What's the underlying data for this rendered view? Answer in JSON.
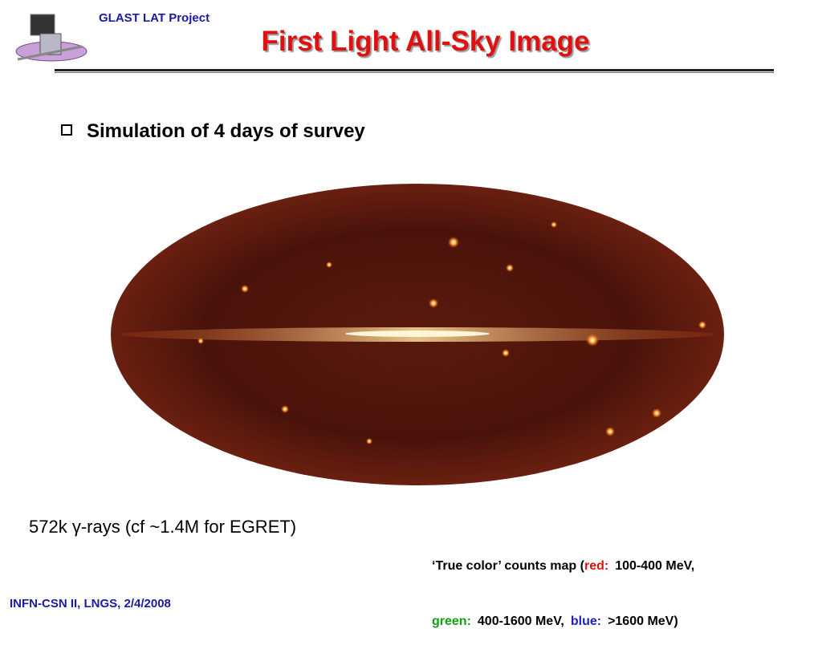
{
  "header": {
    "project": "GLAST LAT Project",
    "title": "First Light All-Sky Image"
  },
  "bullet": "Simulation of 4 days of survey",
  "caption": "572k γ-rays (cf ~1.4M for EGRET)",
  "legend": {
    "line1": [
      "‘True color’ counts map (",
      "red:",
      "100-400 MeV,"
    ],
    "line2": [
      "green:",
      "400-1600 MeV,",
      "blue:",
      ">1600 MeV)"
    ]
  },
  "footer": "INFN-CSN II, LNGS, 2/4/2008"
}
